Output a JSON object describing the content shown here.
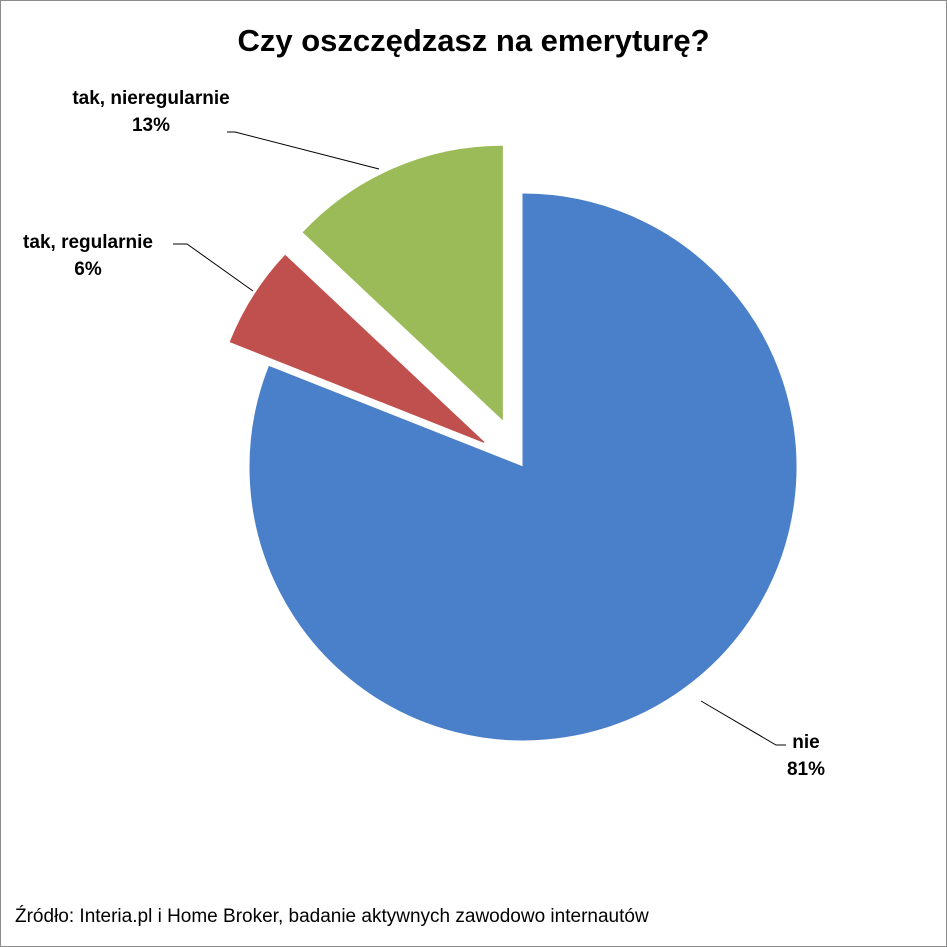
{
  "chart_data": {
    "type": "pie",
    "title": "Czy oszczędzasz na emeryturę?",
    "categories": [
      "nie",
      "tak, regularnie",
      "tak, nieregularnie"
    ],
    "values": [
      81,
      6,
      13
    ],
    "value_labels": [
      "81%",
      "6%",
      "13%"
    ],
    "colors": [
      "#4a7fc9",
      "#c0504d",
      "#9bbb59"
    ],
    "source": "Źródło: Interia.pl i Home Broker, badanie aktywnych zawodowo internautów"
  }
}
